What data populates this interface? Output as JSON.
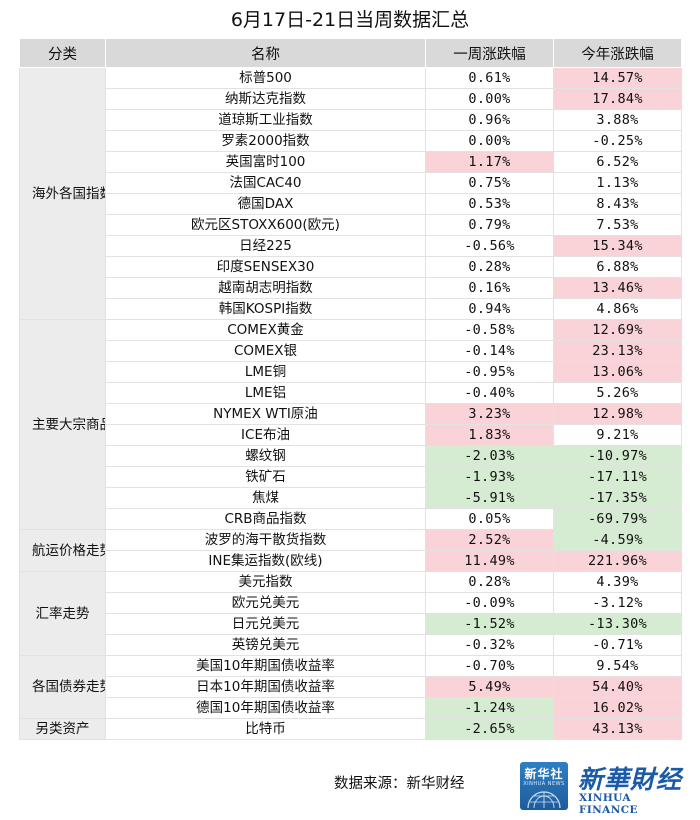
{
  "title": "6月17日-21日当周数据汇总",
  "headers": {
    "category": "分类",
    "name": "名称",
    "week": "一周涨跌幅",
    "ytd": "今年涨跌幅"
  },
  "colors": {
    "up": "#f9d3d7",
    "down": "#d6ecd2",
    "header": "#d9d9d9",
    "category": "#ececec"
  },
  "groups": [
    {
      "category": "海外各国指数",
      "rows": [
        {
          "name": "标普500",
          "week": "0.61%",
          "week_hl": "",
          "ytd": "14.57%",
          "ytd_hl": "red"
        },
        {
          "name": "纳斯达克指数",
          "week": "0.00%",
          "week_hl": "",
          "ytd": "17.84%",
          "ytd_hl": "red"
        },
        {
          "name": "道琼斯工业指数",
          "week": "0.96%",
          "week_hl": "",
          "ytd": "3.88%",
          "ytd_hl": ""
        },
        {
          "name": "罗素2000指数",
          "week": "0.00%",
          "week_hl": "",
          "ytd": "-0.25%",
          "ytd_hl": ""
        },
        {
          "name": "英国富时100",
          "week": "1.17%",
          "week_hl": "red",
          "ytd": "6.52%",
          "ytd_hl": ""
        },
        {
          "name": "法国CAC40",
          "week": "0.75%",
          "week_hl": "",
          "ytd": "1.13%",
          "ytd_hl": ""
        },
        {
          "name": "德国DAX",
          "week": "0.53%",
          "week_hl": "",
          "ytd": "8.43%",
          "ytd_hl": ""
        },
        {
          "name": "欧元区STOXX600(欧元)",
          "week": "0.79%",
          "week_hl": "",
          "ytd": "7.53%",
          "ytd_hl": ""
        },
        {
          "name": "日经225",
          "week": "-0.56%",
          "week_hl": "",
          "ytd": "15.34%",
          "ytd_hl": "red"
        },
        {
          "name": "印度SENSEX30",
          "week": "0.28%",
          "week_hl": "",
          "ytd": "6.88%",
          "ytd_hl": ""
        },
        {
          "name": "越南胡志明指数",
          "week": "0.16%",
          "week_hl": "",
          "ytd": "13.46%",
          "ytd_hl": "red"
        },
        {
          "name": "韩国KOSPI指数",
          "week": "0.94%",
          "week_hl": "",
          "ytd": "4.86%",
          "ytd_hl": ""
        }
      ]
    },
    {
      "category": "主要大宗商品",
      "rows": [
        {
          "name": "COMEX黄金",
          "week": "-0.58%",
          "week_hl": "",
          "ytd": "12.69%",
          "ytd_hl": "red"
        },
        {
          "name": "COMEX银",
          "week": "-0.14%",
          "week_hl": "",
          "ytd": "23.13%",
          "ytd_hl": "red"
        },
        {
          "name": "LME铜",
          "week": "-0.95%",
          "week_hl": "",
          "ytd": "13.06%",
          "ytd_hl": "red"
        },
        {
          "name": "LME铝",
          "week": "-0.40%",
          "week_hl": "",
          "ytd": "5.26%",
          "ytd_hl": ""
        },
        {
          "name": "NYMEX WTI原油",
          "week": "3.23%",
          "week_hl": "red",
          "ytd": "12.98%",
          "ytd_hl": "red"
        },
        {
          "name": "ICE布油",
          "week": "1.83%",
          "week_hl": "red",
          "ytd": "9.21%",
          "ytd_hl": ""
        },
        {
          "name": "螺纹钢",
          "week": "-2.03%",
          "week_hl": "green",
          "ytd": "-10.97%",
          "ytd_hl": "green"
        },
        {
          "name": "铁矿石",
          "week": "-1.93%",
          "week_hl": "green",
          "ytd": "-17.11%",
          "ytd_hl": "green"
        },
        {
          "name": "焦煤",
          "week": "-5.91%",
          "week_hl": "green",
          "ytd": "-17.35%",
          "ytd_hl": "green"
        },
        {
          "name": "CRB商品指数",
          "week": "0.05%",
          "week_hl": "",
          "ytd": "-69.79%",
          "ytd_hl": "green"
        }
      ]
    },
    {
      "category": "航运价格走势",
      "rows": [
        {
          "name": "波罗的海干散货指数",
          "week": "2.52%",
          "week_hl": "red",
          "ytd": "-4.59%",
          "ytd_hl": "green"
        },
        {
          "name": "INE集运指数(欧线)",
          "week": "11.49%",
          "week_hl": "red",
          "ytd": "221.96%",
          "ytd_hl": "red"
        }
      ]
    },
    {
      "category": "汇率走势",
      "rows": [
        {
          "name": "美元指数",
          "week": "0.28%",
          "week_hl": "",
          "ytd": "4.39%",
          "ytd_hl": ""
        },
        {
          "name": "欧元兑美元",
          "week": "-0.09%",
          "week_hl": "",
          "ytd": "-3.12%",
          "ytd_hl": ""
        },
        {
          "name": "日元兑美元",
          "week": "-1.52%",
          "week_hl": "green",
          "ytd": "-13.30%",
          "ytd_hl": "green"
        },
        {
          "name": "英镑兑美元",
          "week": "-0.32%",
          "week_hl": "",
          "ytd": "-0.71%",
          "ytd_hl": ""
        }
      ]
    },
    {
      "category": "各国债券走势",
      "rows": [
        {
          "name": "美国10年期国债收益率",
          "week": "-0.70%",
          "week_hl": "",
          "ytd": "9.54%",
          "ytd_hl": ""
        },
        {
          "name": "日本10年期国债收益率",
          "week": "5.49%",
          "week_hl": "red",
          "ytd": "54.40%",
          "ytd_hl": "red"
        },
        {
          "name": "德国10年期国债收益率",
          "week": "-1.24%",
          "week_hl": "green",
          "ytd": "16.02%",
          "ytd_hl": "red"
        }
      ]
    },
    {
      "category": "另类资产",
      "rows": [
        {
          "name": "比特币",
          "week": "-2.65%",
          "week_hl": "green",
          "ytd": "43.13%",
          "ytd_hl": "red"
        }
      ]
    }
  ],
  "footer": {
    "source": "数据来源：新华财经",
    "logo1_title": "新华社",
    "logo1_sub": "XINHUA NEWS",
    "logo2_cn": "新華財经",
    "logo2_en": "XINHUA FINANCE"
  }
}
